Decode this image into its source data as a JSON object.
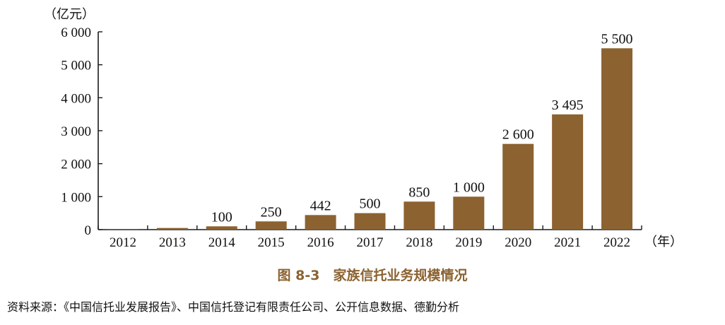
{
  "chart_data": {
    "type": "bar",
    "title": "图 8-3　家族信托业务规模情况",
    "ylabel": "（亿元）",
    "xlabel": "（年）",
    "categories": [
      "2012",
      "2013",
      "2014",
      "2015",
      "2016",
      "2017",
      "2018",
      "2019",
      "2020",
      "2021",
      "2022"
    ],
    "values": [
      5,
      50,
      100,
      250,
      442,
      500,
      850,
      1000,
      2600,
      3495,
      5500
    ],
    "data_labels": [
      "",
      "",
      "100",
      "250",
      "442",
      "500",
      "850",
      "1 000",
      "2 600",
      "3 495",
      "5 500"
    ],
    "ylim": [
      0,
      6000
    ],
    "yticks": [
      0,
      1000,
      2000,
      3000,
      4000,
      5000,
      6000
    ],
    "ytick_labels": [
      "0",
      "1 000",
      "2 000",
      "3 000",
      "4 000",
      "5 000",
      "6 000"
    ],
    "bar_color": "#8b6230",
    "title_color": "#8b6230",
    "grid": false,
    "legend": "none"
  },
  "source": "资料来源：《中国信托业发展报告》、中国信托登记有限责任公司、公开信息数据、德勤分析"
}
